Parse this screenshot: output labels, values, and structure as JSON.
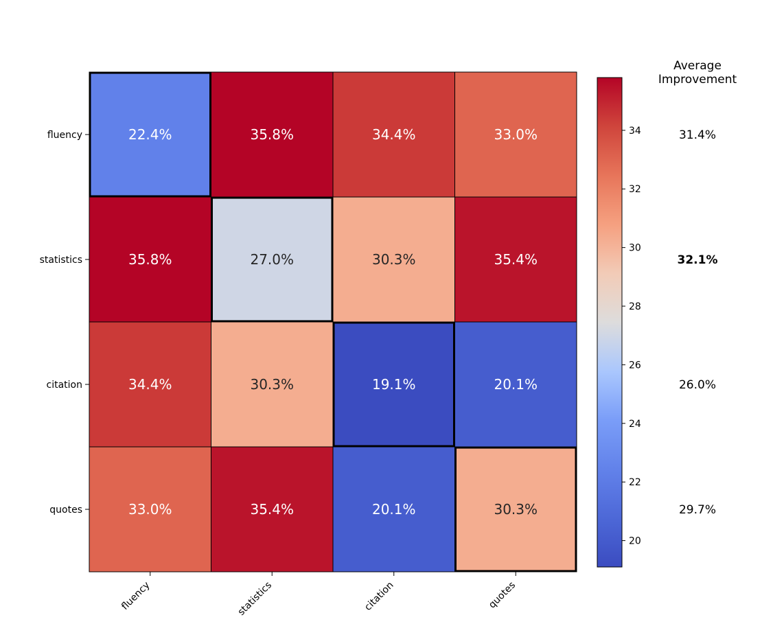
{
  "chart_data": {
    "type": "heatmap",
    "rows": [
      "fluency",
      "statistics",
      "citation",
      "quotes"
    ],
    "columns": [
      "fluency",
      "statistics",
      "citation",
      "quotes"
    ],
    "values": [
      [
        22.4,
        35.8,
        34.4,
        33.0
      ],
      [
        35.8,
        27.0,
        30.3,
        35.4
      ],
      [
        34.4,
        30.3,
        19.1,
        20.1
      ],
      [
        33.0,
        35.4,
        20.1,
        30.3
      ]
    ],
    "cell_labels": [
      [
        "22.4%",
        "35.8%",
        "34.4%",
        "33.0%"
      ],
      [
        "35.8%",
        "27.0%",
        "30.3%",
        "35.4%"
      ],
      [
        "34.4%",
        "30.3%",
        "19.1%",
        "20.1%"
      ],
      [
        "33.0%",
        "35.4%",
        "20.1%",
        "30.3%"
      ]
    ],
    "colormap": "coolwarm",
    "color_range": [
      19.1,
      35.8
    ],
    "colorbar_ticks": [
      20,
      22,
      24,
      26,
      28,
      30,
      32,
      34
    ],
    "highlighted_diagonal": true,
    "average_title": [
      "Average",
      "Improvement"
    ],
    "average_values": [
      31.4,
      32.1,
      26.0,
      29.7
    ],
    "average_labels": [
      "31.4%",
      "32.1%",
      "26.0%",
      "29.7%"
    ],
    "average_bold_index": 1,
    "text_colors": {
      "light": "#ffffff",
      "dark": "#262626"
    }
  }
}
